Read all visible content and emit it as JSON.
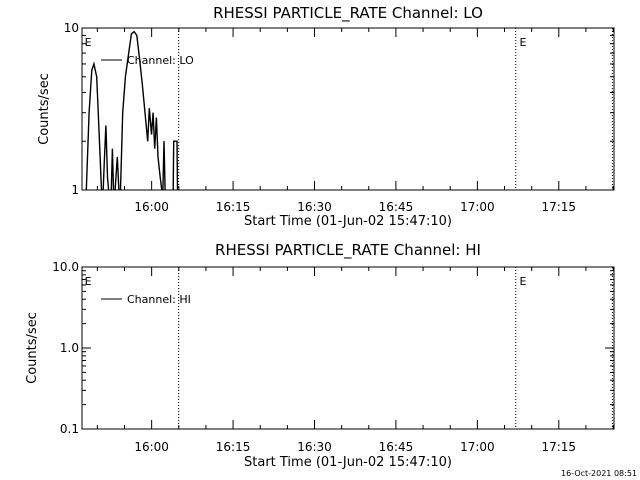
{
  "timestamp": "16-Oct-2021 08:51",
  "chart_data": [
    {
      "type": "line",
      "title": "RHESSI PARTICLE_RATE Channel: LO",
      "xlabel": "Start Time (01-Jun-02 15:47:10)",
      "ylabel": "Counts/sec",
      "y_scale": "log",
      "ylim": [
        1,
        10
      ],
      "y_ticks": [
        1,
        10
      ],
      "y_tick_labels": [
        "1",
        "10"
      ],
      "x_unit": "minutes after 15:47:10",
      "xlim": [
        0,
        98
      ],
      "x_ticks": [
        12.83,
        27.83,
        42.83,
        57.83,
        72.83,
        87.83
      ],
      "x_tick_labels": [
        "16:00",
        "16:15",
        "16:30",
        "16:45",
        "17:00",
        "17:15"
      ],
      "event_lines": [
        17.8,
        79.9,
        97.7
      ],
      "event_markers": [
        {
          "x": 0.3,
          "label": "E"
        },
        {
          "x": 80.4,
          "label": "E"
        }
      ],
      "legend": {
        "label": "Channel: LO",
        "position": "top-left"
      },
      "series": [
        {
          "name": "Channel: LO",
          "segments": [
            [
              [
                0.8,
                1
              ],
              [
                1.3,
                3
              ],
              [
                1.8,
                5.5
              ],
              [
                2.2,
                6
              ],
              [
                2.7,
                5
              ],
              [
                3.1,
                2.5
              ],
              [
                3.6,
                1
              ]
            ],
            [
              [
                3.9,
                1
              ],
              [
                4.1,
                1.5
              ],
              [
                4.4,
                2.5
              ],
              [
                4.7,
                1.2
              ],
              [
                4.9,
                1
              ]
            ],
            [
              [
                5.4,
                1
              ],
              [
                5.6,
                1.8
              ],
              [
                5.8,
                1
              ]
            ],
            [
              [
                6.1,
                1
              ],
              [
                6.5,
                1.6
              ],
              [
                6.8,
                1
              ]
            ],
            [
              [
                7.1,
                1
              ],
              [
                7.5,
                3
              ],
              [
                8,
                5
              ],
              [
                8.6,
                7
              ],
              [
                9.1,
                9.2
              ],
              [
                9.6,
                9.5
              ],
              [
                10.1,
                9
              ],
              [
                10.6,
                6.5
              ],
              [
                11.1,
                4.5
              ],
              [
                11.6,
                3
              ],
              [
                12.1,
                2
              ]
            ],
            [
              [
                12.1,
                2
              ],
              [
                12.4,
                3.2
              ],
              [
                12.8,
                2.2
              ]
            ],
            [
              [
                12.8,
                2.2
              ],
              [
                13.1,
                3
              ],
              [
                13.4,
                1.8
              ]
            ],
            [
              [
                13.4,
                1.8
              ],
              [
                13.7,
                2.8
              ],
              [
                14,
                1.6
              ],
              [
                14.4,
                1.2
              ],
              [
                14.7,
                1
              ]
            ],
            [
              [
                14.9,
                1
              ],
              [
                15.1,
                2
              ],
              [
                15.3,
                1
              ]
            ],
            [
              [
                16.8,
                1
              ],
              [
                16.9,
                2
              ],
              [
                17.5,
                2
              ],
              [
                17.6,
                1
              ]
            ]
          ]
        }
      ]
    },
    {
      "type": "line",
      "title": "RHESSI PARTICLE_RATE Channel: HI",
      "xlabel": "Start Time (01-Jun-02 15:47:10)",
      "ylabel": "Counts/sec",
      "y_scale": "log",
      "ylim": [
        0.1,
        10
      ],
      "y_ticks": [
        0.1,
        1,
        10
      ],
      "y_tick_labels": [
        "0.1",
        "1.0",
        "10.0"
      ],
      "x_unit": "minutes after 15:47:10",
      "xlim": [
        0,
        98
      ],
      "x_ticks": [
        12.83,
        27.83,
        42.83,
        57.83,
        72.83,
        87.83
      ],
      "x_tick_labels": [
        "16:00",
        "16:15",
        "16:30",
        "16:45",
        "17:00",
        "17:15"
      ],
      "event_lines": [
        17.8,
        79.9,
        97.7
      ],
      "event_markers": [
        {
          "x": 0.3,
          "label": "E"
        },
        {
          "x": 80.4,
          "label": "E"
        }
      ],
      "legend": {
        "label": "Channel: HI",
        "position": "top-left"
      },
      "series": [
        {
          "name": "Channel: HI",
          "segments": []
        }
      ]
    }
  ]
}
